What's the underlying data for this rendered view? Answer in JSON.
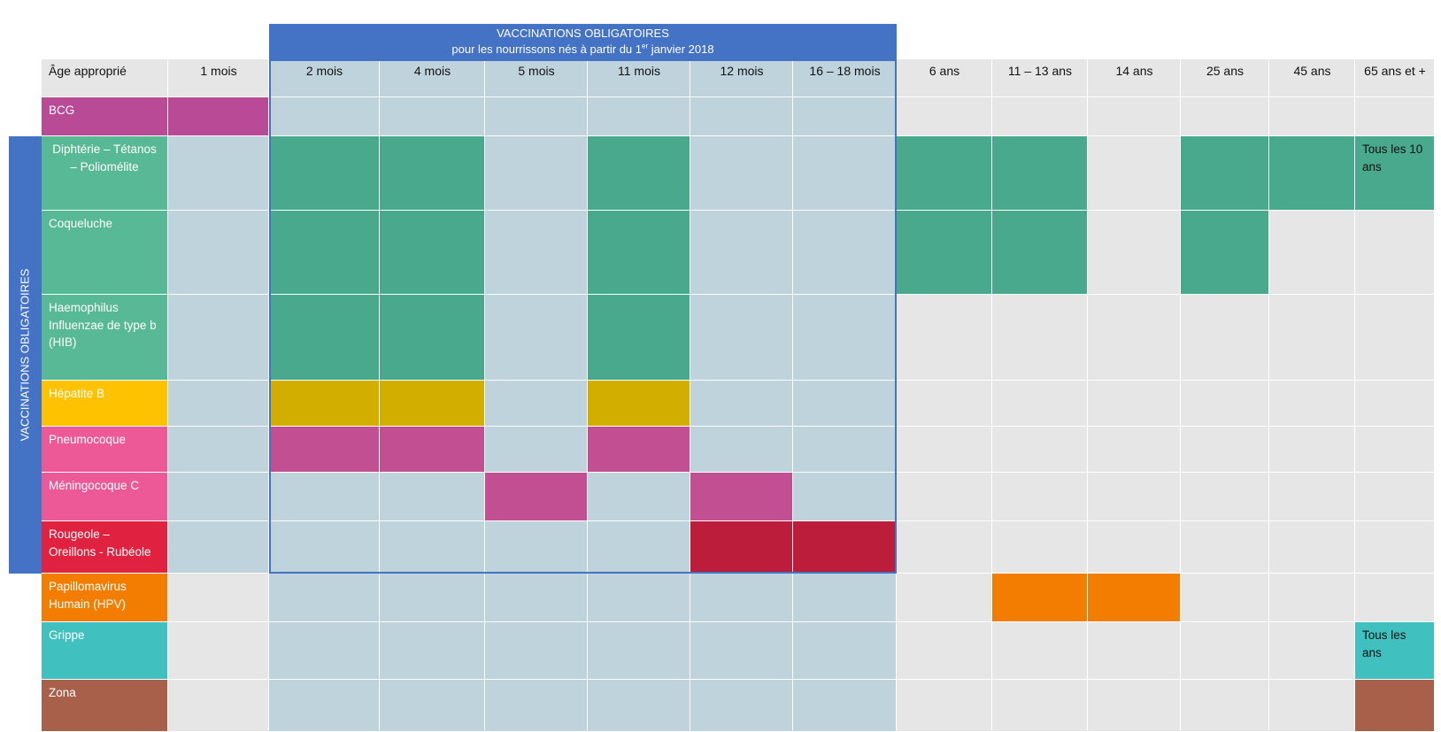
{
  "banner": {
    "line1": "VACCINATIONS OBLIGATOIRES",
    "line2_prefix": "pour les nourrissons nés à partir du 1",
    "line2_sup": "er",
    "line2_suffix": " janvier 2018"
  },
  "side_label": "VACCINATIONS OBLIGATOIRES",
  "chart_data": {
    "type": "table",
    "corner_label": "Âge approprié",
    "columns": [
      "1 mois",
      "2 mois",
      "4 mois",
      "5 mois",
      "11 mois",
      "12 mois",
      "16 – 18 mois",
      "6 ans",
      "11 – 13 ans",
      "14 ans",
      "25 ans",
      "45 ans",
      "65 ans et +"
    ],
    "mandatory_columns": [
      "2 mois",
      "4 mois",
      "5 mois",
      "11 mois",
      "12 mois",
      "16 – 18 mois"
    ],
    "colors": {
      "grey": "#E6E6E6",
      "light_blue": "#BFD3DD",
      "banner_blue": "#4472C4"
    },
    "rows": [
      {
        "name": "BCG",
        "label_color": "#B94B96",
        "fill_color": "#B94B96",
        "mandatory": false,
        "scheduled": [
          "1 mois"
        ],
        "notes": {}
      },
      {
        "name": "Diphtérie – Tétanos – Poliomélite",
        "label_color": "#58B997",
        "fill_color": "#49A98C",
        "mandatory": true,
        "center": true,
        "scheduled": [
          "2 mois",
          "4 mois",
          "11 mois",
          "6 ans",
          "11 – 13 ans",
          "25 ans",
          "45 ans",
          "65 ans et +"
        ],
        "notes": {
          "65 ans et +": "Tous les 10 ans"
        }
      },
      {
        "name": "Coqueluche",
        "label_color": "#58B997",
        "fill_color": "#49A98C",
        "mandatory": true,
        "scheduled": [
          "2 mois",
          "4 mois",
          "11 mois",
          "6 ans",
          "11 – 13 ans",
          "25 ans"
        ],
        "notes": {}
      },
      {
        "name": "Haemophilus Influenzae de type b (HIB)",
        "label_color": "#58B997",
        "fill_color": "#49A98C",
        "mandatory": true,
        "scheduled": [
          "2 mois",
          "4 mois",
          "11 mois"
        ],
        "notes": {}
      },
      {
        "name": "Hépatite B",
        "label_color": "#FFC200",
        "fill_color": "#D1AE00",
        "mandatory": true,
        "scheduled": [
          "2 mois",
          "4 mois",
          "11 mois"
        ],
        "notes": {}
      },
      {
        "name": "Pneumocoque",
        "label_color": "#EC5996",
        "fill_color": "#C24F92",
        "mandatory": true,
        "scheduled": [
          "2 mois",
          "4 mois",
          "11 mois"
        ],
        "notes": {}
      },
      {
        "name": "Méningocoque C",
        "label_color": "#EC5996",
        "fill_color": "#C24F92",
        "mandatory": true,
        "scheduled": [
          "5 mois",
          "12 mois"
        ],
        "notes": {}
      },
      {
        "name": "Rougeole – Oreillons - Rubéole",
        "label_color": "#E02140",
        "fill_color": "#BC1D3A",
        "mandatory": true,
        "scheduled": [
          "12 mois",
          "16 – 18 mois"
        ],
        "notes": {}
      },
      {
        "name": "Papillomavirus Humain (HPV)",
        "label_color": "#F27D00",
        "fill_color": "#F27D00",
        "mandatory": false,
        "scheduled": [
          "11 – 13 ans",
          "14 ans"
        ],
        "notes": {}
      },
      {
        "name": "Grippe",
        "label_color": "#40C1C0",
        "fill_color": "#40C1C0",
        "mandatory": false,
        "scheduled": [
          "65 ans et +"
        ],
        "notes": {
          "65 ans et +": "Tous les ans"
        }
      },
      {
        "name": "Zona",
        "label_color": "#A8604A",
        "fill_color": "#A8604A",
        "mandatory": false,
        "scheduled": [
          "65 ans et +"
        ],
        "notes": {}
      }
    ]
  }
}
